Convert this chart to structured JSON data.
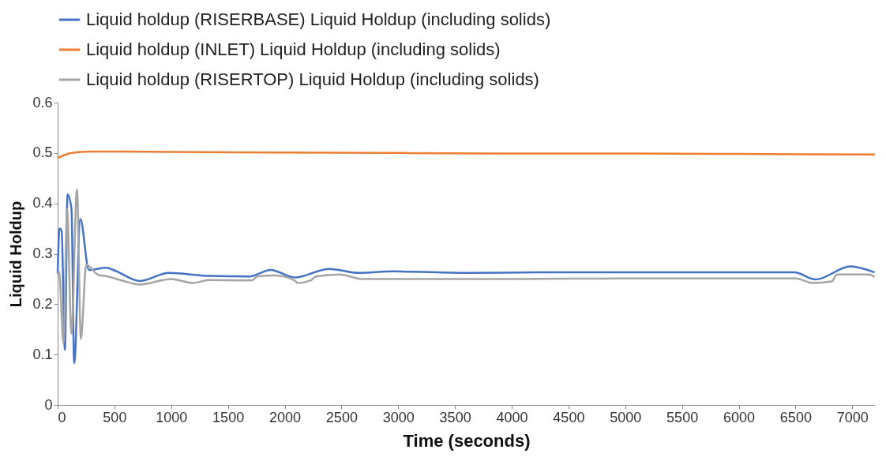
{
  "chart_data": {
    "type": "line",
    "xlabel": "Time (seconds)",
    "ylabel": "Liquid Holdup",
    "xlim": [
      0,
      7200
    ],
    "xticks": [
      0,
      500,
      1000,
      1500,
      2000,
      2500,
      3000,
      3500,
      4000,
      4500,
      5000,
      5500,
      6000,
      6500,
      7000
    ],
    "ylim": [
      0,
      0.6
    ],
    "yticks": [
      0,
      0.1,
      0.2,
      0.3,
      0.4,
      0.5,
      0.6
    ],
    "grid": false,
    "legend": "top",
    "marker": "none",
    "line_style": "solid",
    "series": [
      {
        "name": "Liquid holdup (RISERBASE) Liquid Holdup (including solids)",
        "color": "#4472c4",
        "x": [
          0,
          16,
          35,
          64,
          87,
          122,
          146,
          200,
          275,
          428,
          510,
          722,
          980,
          1335,
          1690,
          1876,
          2088,
          2394,
          2653,
          2959,
          3616,
          4230,
          5000,
          6490,
          6678,
          6984,
          7197
        ],
        "values": [
          0.26,
          0.35,
          0.346,
          0.109,
          0.418,
          0.389,
          0.083,
          0.369,
          0.268,
          0.272,
          0.266,
          0.246,
          0.262,
          0.256,
          0.255,
          0.268,
          0.253,
          0.27,
          0.262,
          0.265,
          0.262,
          0.263,
          0.263,
          0.263,
          0.249,
          0.275,
          0.263
        ]
      },
      {
        "name": "Liquid holdup (INLET) Liquid Holdup (including solids)",
        "color": "#ed7d31",
        "x": [
          0,
          50,
          100,
          150,
          200,
          300,
          500,
          1000,
          2000,
          3000,
          4000,
          5000,
          6000,
          7200
        ],
        "values": [
          0.49,
          0.495,
          0.499,
          0.501,
          0.502,
          0.503,
          0.503,
          0.502,
          0.501,
          0.5,
          0.499,
          0.499,
          0.498,
          0.497
        ]
      },
      {
        "name": "Liquid holdup (RISERTOP) Liquid Holdup (including solids)",
        "color": "#a5a5a5",
        "x": [
          0,
          12,
          52,
          83,
          122,
          170,
          205,
          252,
          358,
          440,
          582,
          722,
          1000,
          1193,
          1335,
          1710,
          1760,
          1919,
          2088,
          2112,
          2229,
          2275,
          2488,
          2676,
          4000,
          5000,
          6500,
          6652,
          6820,
          6865,
          7150,
          7197
        ],
        "values": [
          0.26,
          0.265,
          0.122,
          0.389,
          0.141,
          0.428,
          0.131,
          0.278,
          0.258,
          0.255,
          0.246,
          0.239,
          0.25,
          0.242,
          0.248,
          0.247,
          0.255,
          0.257,
          0.247,
          0.242,
          0.247,
          0.255,
          0.259,
          0.25,
          0.25,
          0.251,
          0.251,
          0.242,
          0.245,
          0.259,
          0.259,
          0.254
        ]
      }
    ]
  }
}
